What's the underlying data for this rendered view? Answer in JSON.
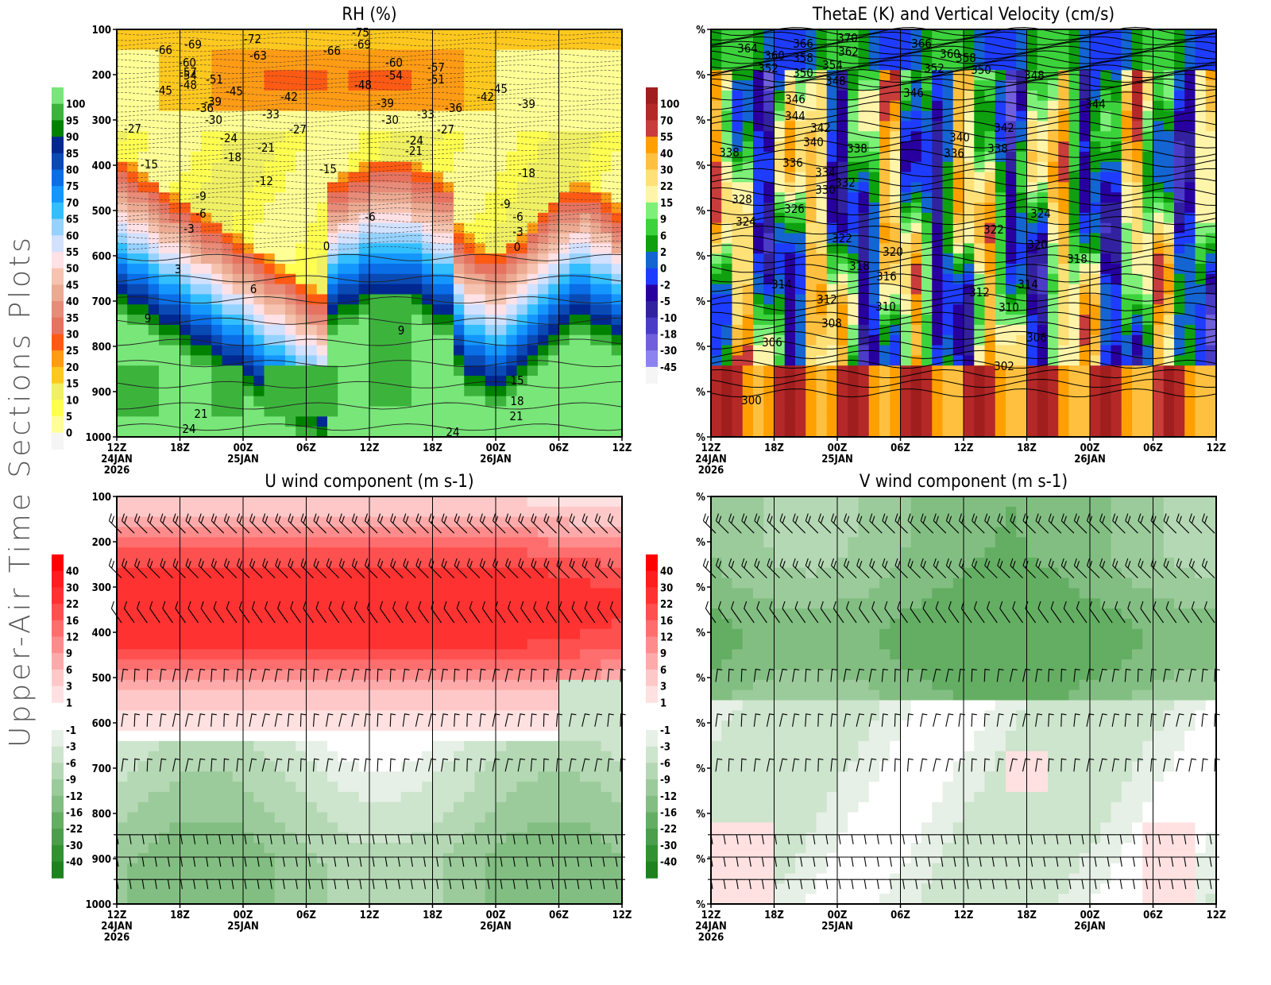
{
  "page": {
    "side_title": "Upper-Air Time Sections Plots"
  },
  "time_axis": {
    "ticks": [
      "12Z",
      "18Z",
      "00Z",
      "06Z",
      "12Z",
      "18Z",
      "00Z",
      "06Z",
      "12Z"
    ],
    "date_labels": [
      {
        "tick_index": 0,
        "lines": [
          "24JAN",
          "2026"
        ]
      },
      {
        "tick_index": 2,
        "lines": [
          "25JAN"
        ]
      },
      {
        "tick_index": 6,
        "lines": [
          "26JAN"
        ]
      }
    ]
  },
  "chart_data": [
    {
      "id": "rh",
      "type": "heatmap",
      "title": "RH (%)",
      "xlabel": "",
      "ylabel": "",
      "y_ticks": [
        "100",
        "200",
        "300",
        "400",
        "500",
        "600",
        "700",
        "800",
        "900",
        "1000"
      ],
      "ylim": [
        100,
        1000
      ],
      "grid": true,
      "colorbar": {
        "labels": [
          "100",
          "95",
          "90",
          "85",
          "80",
          "75",
          "70",
          "65",
          "60",
          "55",
          "50",
          "45",
          "40",
          "35",
          "30",
          "25",
          "20",
          "15",
          "10",
          "5",
          "0"
        ],
        "colors": [
          "#78e678",
          "#3cb43c",
          "#008200",
          "#002890",
          "#0a4ab4",
          "#0a6ee6",
          "#1496ff",
          "#32beff",
          "#96d2ff",
          "#d2e1ff",
          "#ffe1e6",
          "#f5c3af",
          "#ebaa91",
          "#e68c78",
          "#e6735f",
          "#ff5a14",
          "#ff9b14",
          "#ffc81e",
          "#f0f064",
          "#ffff50",
          "#ffff96",
          "#f5f5f5"
        ]
      },
      "contour_labels": {
        "description_unit": "temperature (C)",
        "values": [
          "-75",
          "-72",
          "-69",
          "-69",
          "-66",
          "-66",
          "-63",
          "-60",
          "-60",
          "-57",
          "-57",
          "-54",
          "-54",
          "-51",
          "-51",
          "-48",
          "-48",
          "-45",
          "-45",
          "-45",
          "-42",
          "-42",
          "-39",
          "-39",
          "-39",
          "-36",
          "-36",
          "-33",
          "-33",
          "-30",
          "-30",
          "-27",
          "-27",
          "-27",
          "-24",
          "-24",
          "-21",
          "-21",
          "-18",
          "-18",
          "-15",
          "-15",
          "-12",
          "-9",
          "-9",
          "-6",
          "-6",
          "-6",
          "-3",
          "-3",
          "0",
          "0",
          "3",
          "6",
          "9",
          "9",
          "15",
          "18",
          "21",
          "21",
          "24",
          "24"
        ]
      }
    },
    {
      "id": "thetae",
      "type": "heatmap",
      "title": "ThetaE (K) and Vertical Velocity (cm/s)",
      "xlabel": "",
      "ylabel": "",
      "y_ticks": [
        "%",
        "%",
        "%",
        "%",
        "%",
        "%",
        "%",
        "%",
        "%",
        "%"
      ],
      "grid": true,
      "colorbar": {
        "labels": [
          "100",
          "70",
          "55",
          "40",
          "30",
          "22",
          "15",
          "9",
          "6",
          "2",
          "0",
          "-2",
          "-5",
          "-10",
          "-18",
          "-30",
          "-45"
        ],
        "colors": [
          "#a01e1e",
          "#b42828",
          "#c83c3c",
          "#ffa000",
          "#ffc040",
          "#ffe178",
          "#fff5aa",
          "#7ef07a",
          "#3cd23c",
          "#0fa00f",
          "#1464d2",
          "#1e3cff",
          "#2800a0",
          "#3222a0",
          "#4b3cc8",
          "#7060dc",
          "#8c82f0",
          "#f5f5f5"
        ]
      },
      "contour_labels": {
        "description_unit": "ThetaE (K)",
        "values": [
          "370",
          "366",
          "366",
          "364",
          "362",
          "360",
          "360",
          "358",
          "358",
          "354",
          "352",
          "352",
          "350",
          "350",
          "348",
          "348",
          "346",
          "346",
          "344",
          "344",
          "342",
          "342",
          "340",
          "340",
          "338",
          "338",
          "338",
          "336",
          "336",
          "334",
          "332",
          "330",
          "328",
          "326",
          "324",
          "324",
          "322",
          "322",
          "320",
          "320",
          "318",
          "318",
          "316",
          "314",
          "314",
          "312",
          "312",
          "310",
          "310",
          "308",
          "306",
          "306",
          "302",
          "300"
        ]
      }
    },
    {
      "id": "u",
      "type": "heatmap",
      "title": "U wind component (m s-1)",
      "xlabel": "",
      "ylabel": "",
      "y_ticks": [
        "100",
        "200",
        "300",
        "400",
        "500",
        "600",
        "700",
        "800",
        "900",
        "1000"
      ],
      "ylim": [
        100,
        1000
      ],
      "grid": true,
      "colorbar": {
        "labels": [
          "40",
          "30",
          "22",
          "16",
          "12",
          "9",
          "6",
          "3",
          "1",
          "-1",
          "-3",
          "-6",
          "-9",
          "-12",
          "-16",
          "-22",
          "-30",
          "-40"
        ],
        "colors": [
          "#ff0000",
          "#ff1e1e",
          "#ff3232",
          "#ff5050",
          "#ff6e6e",
          "#ff8c8c",
          "#ffaaaa",
          "#ffc8c8",
          "#ffe1e1",
          "#ffffff",
          "#e6f0e6",
          "#cde4cd",
          "#b4d8b4",
          "#9bcb9b",
          "#82be82",
          "#64ae64",
          "#4b9e4b",
          "#329232",
          "#1e821e"
        ]
      },
      "barb_levels_hpa": [
        150,
        250,
        350,
        500,
        600,
        700,
        850,
        900,
        950
      ]
    },
    {
      "id": "v",
      "type": "heatmap",
      "title": "V wind component (m s-1)",
      "xlabel": "",
      "ylabel": "",
      "y_ticks": [
        "%",
        "%",
        "%",
        "%",
        "%",
        "%",
        "%",
        "%",
        "%",
        "%"
      ],
      "grid": true,
      "colorbar": {
        "labels": [
          "40",
          "30",
          "22",
          "16",
          "12",
          "9",
          "6",
          "3",
          "1",
          "-1",
          "-3",
          "-6",
          "-9",
          "-12",
          "-16",
          "-22",
          "-30",
          "-40"
        ],
        "colors": [
          "#ff0000",
          "#ff1e1e",
          "#ff3232",
          "#ff5050",
          "#ff6e6e",
          "#ff8c8c",
          "#ffaaaa",
          "#ffc8c8",
          "#ffe1e1",
          "#ffffff",
          "#e6f0e6",
          "#cde4cd",
          "#b4d8b4",
          "#9bcb9b",
          "#82be82",
          "#64ae64",
          "#4b9e4b",
          "#329232",
          "#1e821e"
        ]
      },
      "barb_levels_hpa": [
        150,
        250,
        350,
        500,
        600,
        700,
        850,
        900,
        950
      ]
    }
  ]
}
